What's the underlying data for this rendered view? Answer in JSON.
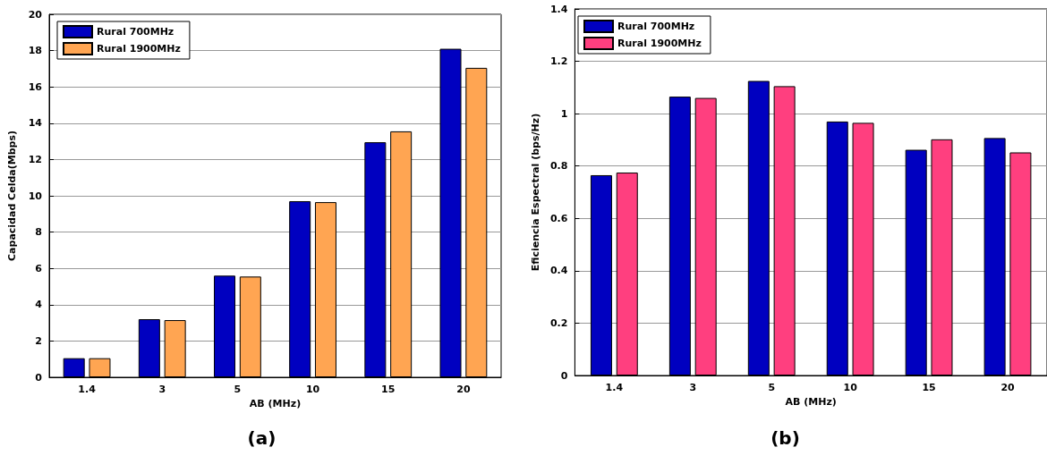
{
  "chart_data": [
    {
      "type": "bar",
      "xlabel": "AB (MHz)",
      "ylabel": "Capacidad Celda(Mbps)",
      "categories": [
        "1.4",
        "3",
        "5",
        "10",
        "15",
        "20"
      ],
      "series": [
        {
          "name": "Rural 700MHz",
          "color": "#0000c0",
          "values": [
            1.05,
            3.2,
            5.6,
            9.7,
            12.95,
            18.1
          ]
        },
        {
          "name": "Rural 1900MHz",
          "color": "#ffa552",
          "values": [
            1.05,
            3.15,
            5.55,
            9.65,
            13.55,
            17.05
          ]
        }
      ],
      "ylim": [
        0,
        20
      ],
      "yticks": [
        0,
        2,
        4,
        6,
        8,
        10,
        12,
        14,
        16,
        18,
        20
      ],
      "grid": "y",
      "legend": "top left",
      "annotations": [
        "(a)"
      ]
    },
    {
      "type": "bar",
      "xlabel": "AB (MHz)",
      "ylabel": "Eficiencia Espectral (bps/Hz)",
      "categories": [
        "1.4",
        "3",
        "5",
        "10",
        "15",
        "20"
      ],
      "series": [
        {
          "name": "Rural 700MHz",
          "color": "#0000c0",
          "values": [
            0.765,
            1.065,
            1.125,
            0.97,
            0.862,
            0.907
          ]
        },
        {
          "name": "Rural 1900MHz",
          "color": "#ff3f7f",
          "values": [
            0.775,
            1.06,
            1.105,
            0.965,
            0.902,
            0.852
          ]
        }
      ],
      "ylim": [
        0,
        1.4
      ],
      "yticks": [
        0,
        0.2,
        0.4,
        0.6,
        0.8,
        1,
        1.2,
        1.4
      ],
      "grid": "y",
      "legend": "top left",
      "annotations": [
        "(b)"
      ]
    }
  ]
}
